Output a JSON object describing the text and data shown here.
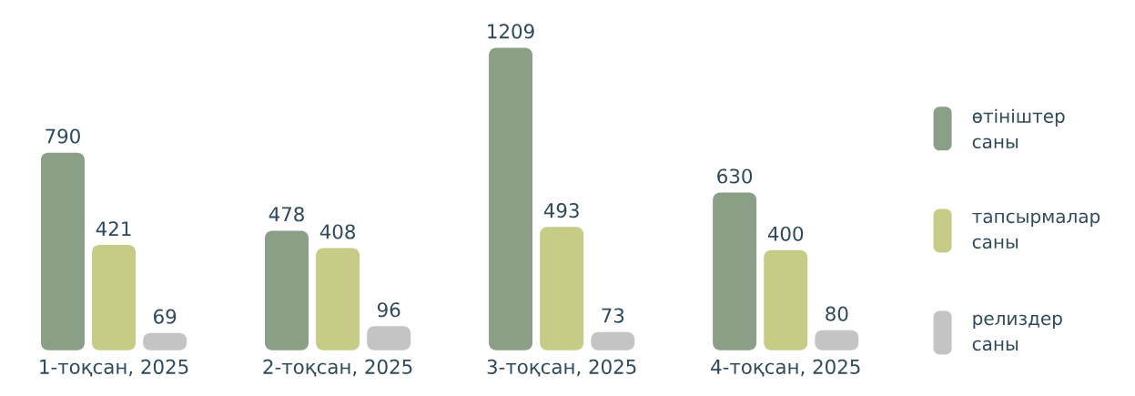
{
  "chart_data": {
    "type": "bar",
    "categories": [
      "1-тоқсан, 2025",
      "2-тоқсан, 2025",
      "3-тоқсан, 2025",
      "4-тоқсан, 2025"
    ],
    "series": [
      {
        "name": "өтініштер саны",
        "color": "#8a9f85",
        "values": [
          790,
          478,
          1209,
          630
        ]
      },
      {
        "name": "тапсырмалар саны",
        "color": "#c6cc86",
        "values": [
          421,
          408,
          493,
          400
        ]
      },
      {
        "name": "релиздер саны",
        "color": "#c4c4c4",
        "values": [
          69,
          96,
          73,
          80
        ]
      }
    ],
    "data_labels": true,
    "legend": "right",
    "grid": false
  }
}
